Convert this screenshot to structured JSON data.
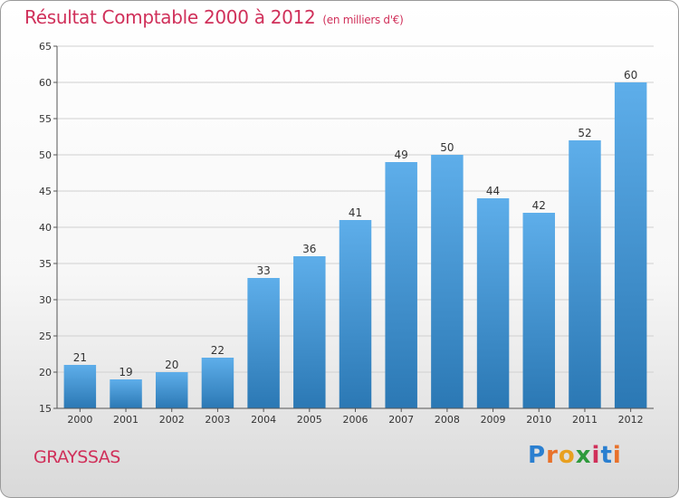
{
  "header": {
    "title": "Résultat Comptable 2000 à 2012",
    "subtitle": "(en milliers d'€)"
  },
  "footer": {
    "commune": "GRAYSSAS",
    "logo": [
      "P",
      "r",
      "o",
      "x",
      "i",
      "t",
      "i"
    ]
  },
  "colors": {
    "bar_top": "#5eaeea",
    "bar_bottom": "#2b78b4",
    "title": "#d0305a",
    "grid": "#d0d0d0"
  },
  "chart_data": {
    "type": "bar",
    "title": "Résultat Comptable 2000 à 2012",
    "xlabel": "",
    "ylabel": "",
    "categories": [
      "2000",
      "2001",
      "2002",
      "2003",
      "2004",
      "2005",
      "2006",
      "2007",
      "2008",
      "2009",
      "2010",
      "2011",
      "2012"
    ],
    "values": [
      21,
      19,
      20,
      22,
      33,
      36,
      41,
      49,
      50,
      44,
      42,
      52,
      60
    ],
    "ylim": [
      15,
      65
    ],
    "yticks": [
      15,
      20,
      25,
      30,
      35,
      40,
      45,
      50,
      55,
      60,
      65
    ],
    "grid": true
  }
}
